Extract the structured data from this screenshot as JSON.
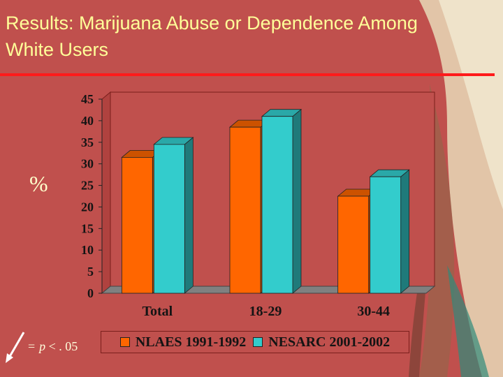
{
  "slide": {
    "title_line1": "Results:  Marijuana Abuse or Dependence  Among",
    "title_line2": "White Users",
    "y_unit_label": "%",
    "footnote_eq": "=",
    "footnote_p": "p",
    "footnote_rest": "< . 05",
    "colors": {
      "background": "#c0504d",
      "title": "#ffff99",
      "rule": "#ff1a1a",
      "series_1": "#ff6600",
      "series_2": "#33cccc"
    }
  },
  "chart_data": {
    "type": "bar",
    "categories": [
      "Total",
      "18-29",
      "30-44"
    ],
    "series": [
      {
        "name": "NLAES 1991-1992",
        "values": [
          31.5,
          38.5,
          22.5
        ]
      },
      {
        "name": "NESARC 2001-2002",
        "values": [
          34.5,
          41.0,
          27.0
        ]
      }
    ],
    "ylim": [
      0,
      45
    ],
    "yticks": [
      "0",
      "5",
      "10",
      "15",
      "20",
      "25",
      "30",
      "35",
      "40",
      "45"
    ],
    "grid": false,
    "legend_position": "bottom",
    "style": "3d"
  }
}
